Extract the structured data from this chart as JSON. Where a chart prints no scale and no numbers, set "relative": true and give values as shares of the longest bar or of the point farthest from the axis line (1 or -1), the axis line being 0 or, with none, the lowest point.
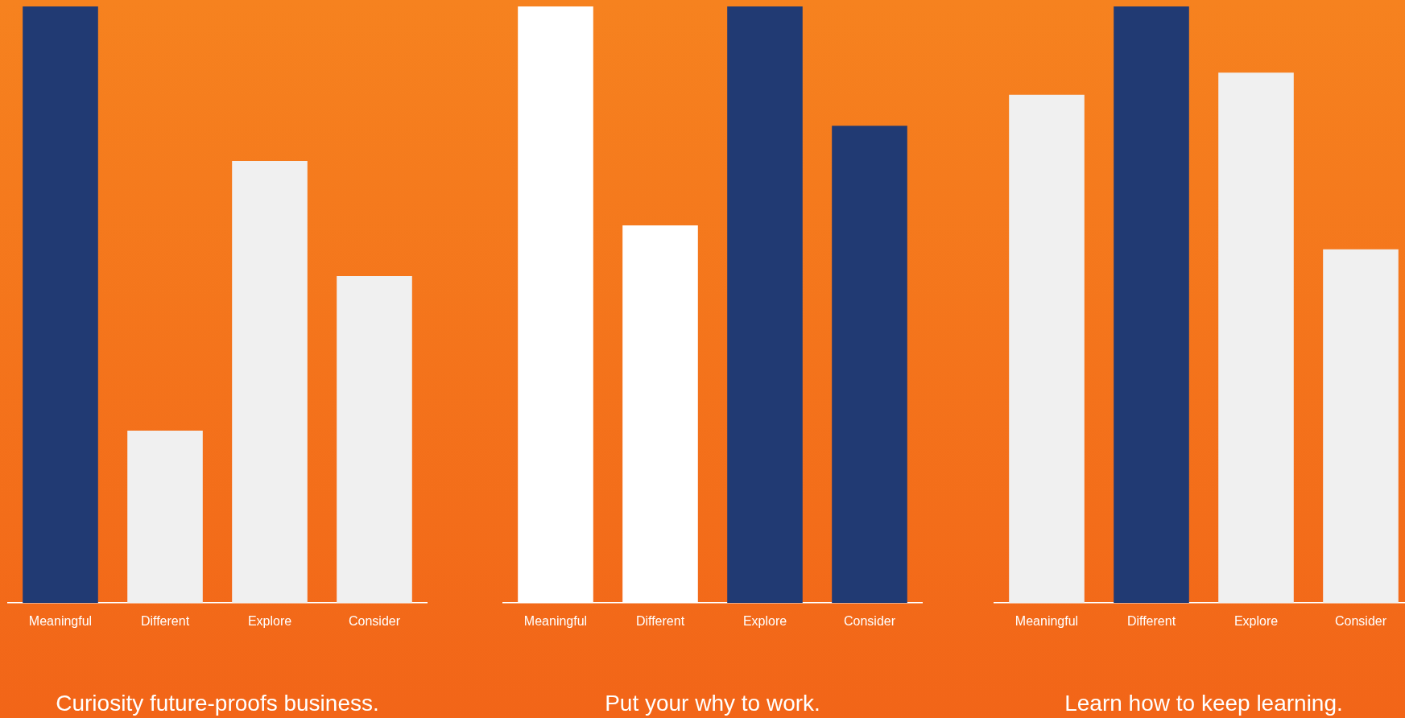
{
  "chart_data": [
    {
      "type": "bar",
      "title": "Curiosity future-proofs business.",
      "relative": true,
      "legend": false,
      "grid": false,
      "categories": [
        "Meaningful",
        "Different",
        "Explore",
        "Consider"
      ],
      "values": [
        1,
        0.289,
        0.741,
        0.548
      ],
      "colors": [
        "#213a73",
        "#f0f0f0",
        "#f0f0f0",
        "#f0f0f0"
      ]
    },
    {
      "type": "bar",
      "title": "Put your why to work.",
      "relative": true,
      "legend": false,
      "grid": false,
      "categories": [
        "Meaningful",
        "Different",
        "Explore",
        "Consider"
      ],
      "values": [
        1,
        0.633,
        1,
        0.8
      ],
      "colors": [
        "#ffffff",
        "#ffffff",
        "#213a73",
        "#213a73"
      ]
    },
    {
      "type": "bar",
      "title": "Learn how to keep learning.",
      "relative": true,
      "legend": false,
      "grid": false,
      "categories": [
        "Meaningful",
        "Different",
        "Explore",
        "Consider"
      ],
      "values": [
        0.852,
        1,
        0.889,
        0.593
      ],
      "colors": [
        "#f0f0f0",
        "#213a73",
        "#f0f0f0",
        "#f0f0f0"
      ]
    }
  ]
}
